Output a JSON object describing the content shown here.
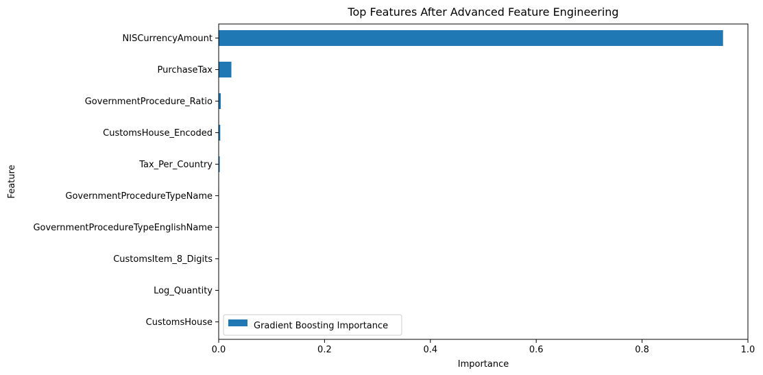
{
  "chart_data": {
    "type": "bar",
    "orientation": "horizontal",
    "title": "Top Features After Advanced Feature Engineering",
    "xlabel": "Importance",
    "ylabel": "Feature",
    "xlim": [
      0,
      1.0
    ],
    "xticks": [
      0,
      0.2,
      0.4,
      0.6,
      0.8,
      1.0
    ],
    "xtick_labels": [
      "0.0",
      "0.2",
      "0.4",
      "0.6",
      "0.8",
      "1.0"
    ],
    "categories": [
      "NISCurrencyAmount",
      "PurchaseTax",
      "GovernmentProcedure_Ratio",
      "CustomsHouse_Encoded",
      "Tax_Per_Country",
      "GovernmentProcedureTypeName",
      "GovernmentProcedureTypeEnglishName",
      "CustomsItem_8_Digits",
      "Log_Quantity",
      "CustomsHouse"
    ],
    "series": [
      {
        "name": "Gradient Boosting Importance",
        "color": "#1f77b4",
        "values": [
          0.953,
          0.024,
          0.004,
          0.003,
          0.002,
          0.0007,
          0.0006,
          0.0004,
          0.0003,
          0.0002
        ]
      }
    ],
    "grid": false,
    "legend_position": "lower-left"
  }
}
